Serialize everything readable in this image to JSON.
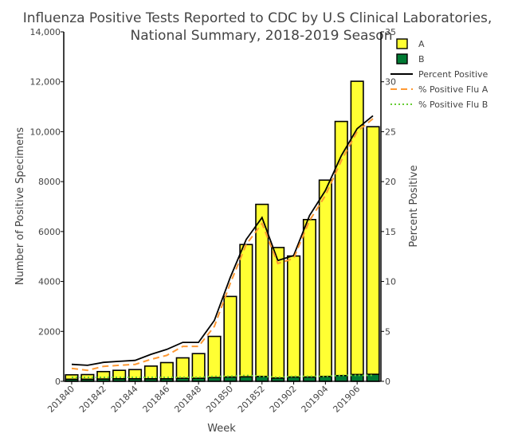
{
  "chart_data": {
    "type": "bar",
    "title": "Influenza Positive Tests Reported to CDC by U.S Clinical Laboratories,",
    "subtitle": "National Summary, 2018-2019 Season",
    "xlabel": "Week",
    "ylabel": "Number of Positive Specimens",
    "y2label": "Percent Positive",
    "ylim": [
      0,
      14000
    ],
    "y2lim": [
      0,
      35
    ],
    "yticks": [
      "0",
      "2000",
      "4000",
      "6000",
      "8000",
      "10,000",
      "12,000",
      "14,000"
    ],
    "y2ticks": [
      "0",
      "5",
      "10",
      "15",
      "20",
      "25",
      "30",
      "35"
    ],
    "xticklabels": [
      "201840",
      "201842",
      "201844",
      "201846",
      "201848",
      "201850",
      "201852",
      "201902",
      "201904",
      "201906"
    ],
    "x_tick_positions": [
      0,
      2,
      4,
      6,
      8,
      10,
      12,
      14,
      16,
      18
    ],
    "categories": [
      "201840",
      "201841",
      "201842",
      "201843",
      "201844",
      "201845",
      "201846",
      "201847",
      "201848",
      "201849",
      "201850",
      "201851",
      "201852",
      "201901",
      "201902",
      "201903",
      "201904",
      "201905",
      "201906",
      "201907"
    ],
    "stacked": true,
    "series": [
      {
        "name": "A",
        "axis": "left",
        "kind": "bar",
        "color": "#ffff33",
        "values": [
          180,
          190,
          300,
          340,
          370,
          510,
          650,
          820,
          990,
          1650,
          3230,
          5300,
          6900,
          5230,
          4850,
          6310,
          7870,
          10180,
          11750,
          9920
        ]
      },
      {
        "name": "B",
        "axis": "left",
        "kind": "bar",
        "color": "#007a33",
        "values": [
          80,
          80,
          90,
          100,
          100,
          100,
          100,
          120,
          120,
          150,
          170,
          180,
          190,
          130,
          170,
          170,
          190,
          230,
          270,
          280
        ]
      },
      {
        "name": "Percent Positive",
        "axis": "right",
        "kind": "line",
        "color": "#000000",
        "dash": "solid",
        "values": [
          1.7,
          1.6,
          1.9,
          2.0,
          2.1,
          2.7,
          3.2,
          3.9,
          3.9,
          6.1,
          10.4,
          14.2,
          16.4,
          12.1,
          12.6,
          16.6,
          19.1,
          22.6,
          25.3,
          26.6
        ]
      },
      {
        "name": "% Positive Flu A",
        "axis": "right",
        "kind": "line",
        "color": "#ff9933",
        "dash": "dashed",
        "values": [
          1.3,
          1.1,
          1.5,
          1.6,
          1.7,
          2.2,
          2.6,
          3.5,
          3.5,
          5.5,
          9.8,
          13.7,
          15.8,
          11.8,
          12.3,
          16.1,
          18.6,
          22.1,
          25.0,
          26.3
        ]
      },
      {
        "name": "% Positive Flu B",
        "axis": "right",
        "kind": "line",
        "color": "#66cc33",
        "dash": "dotted",
        "values": [
          0.4,
          0.4,
          0.4,
          0.4,
          0.4,
          0.4,
          0.4,
          0.4,
          0.4,
          0.5,
          0.5,
          0.6,
          0.5,
          0.4,
          0.5,
          0.5,
          0.5,
          0.6,
          0.6,
          0.6
        ]
      }
    ],
    "grid": false,
    "legend_position": "top-right"
  }
}
